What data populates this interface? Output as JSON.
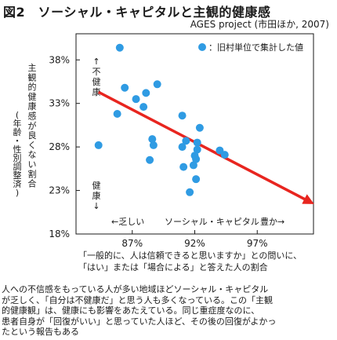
{
  "figure": {
    "title": "図2　ソーシャル・キャピタルと主観的健康感",
    "source": "AGES project (市田ほか, 2007)"
  },
  "chart_data": {
    "type": "scatter",
    "title": "図2　ソーシャル・キャピタルと主観的健康感",
    "xlabel_lines": [
      "「一般的に、人は信頼できると思いますか」との問いに、",
      "「はい」または「場合による」と答えた人の割合"
    ],
    "ylabel_lines": [
      "主観的健康感が良くない割合",
      "(年齢・性別調整済)"
    ],
    "x_ticks": [
      87,
      92,
      97
    ],
    "x_tick_labels": [
      "87%",
      "92%",
      "97%"
    ],
    "y_ticks": [
      18,
      23,
      28,
      33,
      38
    ],
    "y_tick_labels": [
      "18%",
      "23%",
      "28%",
      "33%",
      "38%"
    ],
    "xlim": [
      82.5,
      101.5
    ],
    "ylim": [
      18,
      41
    ],
    "legend": {
      "label": "：旧村単位で集計した値",
      "position": "top-right"
    },
    "annotations": {
      "y_top": "↑不健康",
      "y_bottom": "健康↓",
      "x_axis_left": "←乏しい",
      "x_axis_mid": "ソーシャル・キャピタル",
      "x_axis_right": "豊か→"
    },
    "trend": {
      "x": [
        84.3,
        101.2
      ],
      "y": [
        34.3,
        21.7
      ]
    },
    "points": [
      {
        "x": 84.3,
        "y": 28.2
      },
      {
        "x": 85.8,
        "y": 31.8
      },
      {
        "x": 86.0,
        "y": 39.4
      },
      {
        "x": 86.4,
        "y": 34.8
      },
      {
        "x": 87.3,
        "y": 33.5
      },
      {
        "x": 87.9,
        "y": 32.6
      },
      {
        "x": 88.1,
        "y": 34.2
      },
      {
        "x": 88.6,
        "y": 28.9
      },
      {
        "x": 89.0,
        "y": 35.2
      },
      {
        "x": 88.7,
        "y": 28.2
      },
      {
        "x": 88.4,
        "y": 26.5
      },
      {
        "x": 91.0,
        "y": 31.6
      },
      {
        "x": 91.3,
        "y": 28.7
      },
      {
        "x": 91.0,
        "y": 28.0
      },
      {
        "x": 91.1,
        "y": 25.7
      },
      {
        "x": 92.2,
        "y": 28.5
      },
      {
        "x": 92.2,
        "y": 27.7
      },
      {
        "x": 92.0,
        "y": 27.0
      },
      {
        "x": 92.1,
        "y": 26.6
      },
      {
        "x": 91.9,
        "y": 25.9
      },
      {
        "x": 92.1,
        "y": 24.3
      },
      {
        "x": 91.6,
        "y": 22.8
      },
      {
        "x": 92.4,
        "y": 30.2
      },
      {
        "x": 94.0,
        "y": 27.6
      },
      {
        "x": 94.4,
        "y": 27.1
      }
    ]
  },
  "colors": {
    "point": "#2f9be3",
    "trend": "#e8251f",
    "text": "#1a1a1a"
  },
  "caption_lines": [
    "人への不信感をもっている人が多い地域ほどソーシャル・キャピタル",
    "が乏しく、「自分は不健康だ」と思う人も多くなっている。この「主観",
    "的健康観」は、健康にも影響をあたえている。同じ重症度なのに、",
    "患者自身が「回復がいい」と思っていた人ほど、その後の回復がよかっ",
    "たという報告もある"
  ]
}
